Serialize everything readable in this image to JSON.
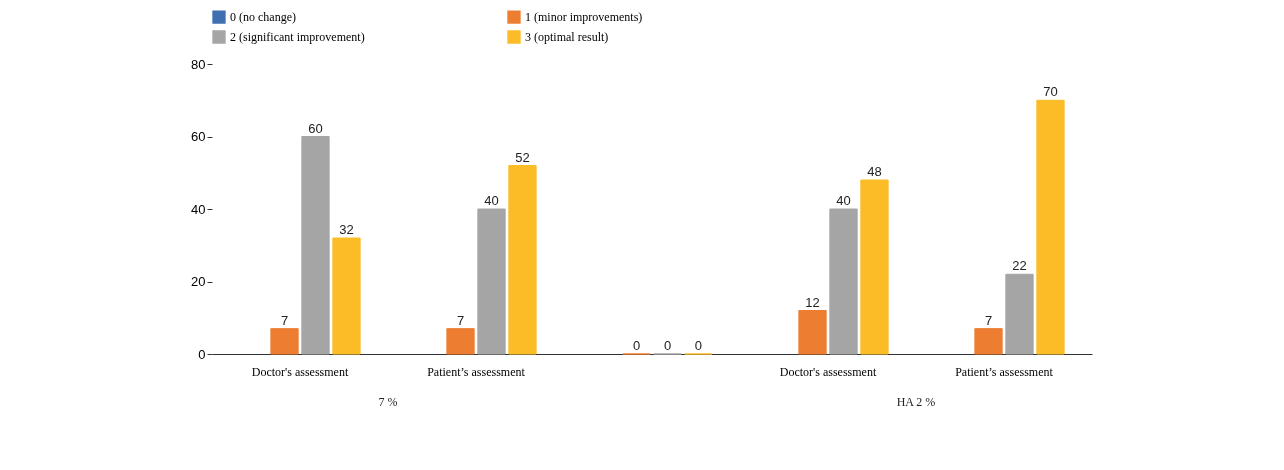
{
  "chart_data": {
    "type": "bar",
    "categories": [
      "Doctor's assessment",
      "Patient’s assessment",
      null,
      "Doctor's assessment",
      "Patient’s assessment"
    ],
    "series": [
      {
        "name": "0 (no change)",
        "color": "#3f6fb0",
        "values": [
          null,
          null,
          null,
          null,
          null
        ]
      },
      {
        "name": "1 (minor improvements)",
        "color": "#ed7d31",
        "values": [
          7,
          7,
          0,
          12,
          7
        ]
      },
      {
        "name": "2 (significant improvement)",
        "color": "#a5a5a5",
        "values": [
          60,
          40,
          0,
          40,
          22
        ]
      },
      {
        "name": "3 (optimal result)",
        "color": "#fbbc27",
        "values": [
          32,
          52,
          0,
          48,
          70
        ]
      }
    ],
    "data_labels": true,
    "ylim": [
      0,
      80
    ],
    "yticks": [
      0,
      20,
      40,
      60,
      80
    ],
    "grid": false,
    "legend": "top",
    "annotations": [
      "7 %",
      "HA 2 %"
    ]
  }
}
